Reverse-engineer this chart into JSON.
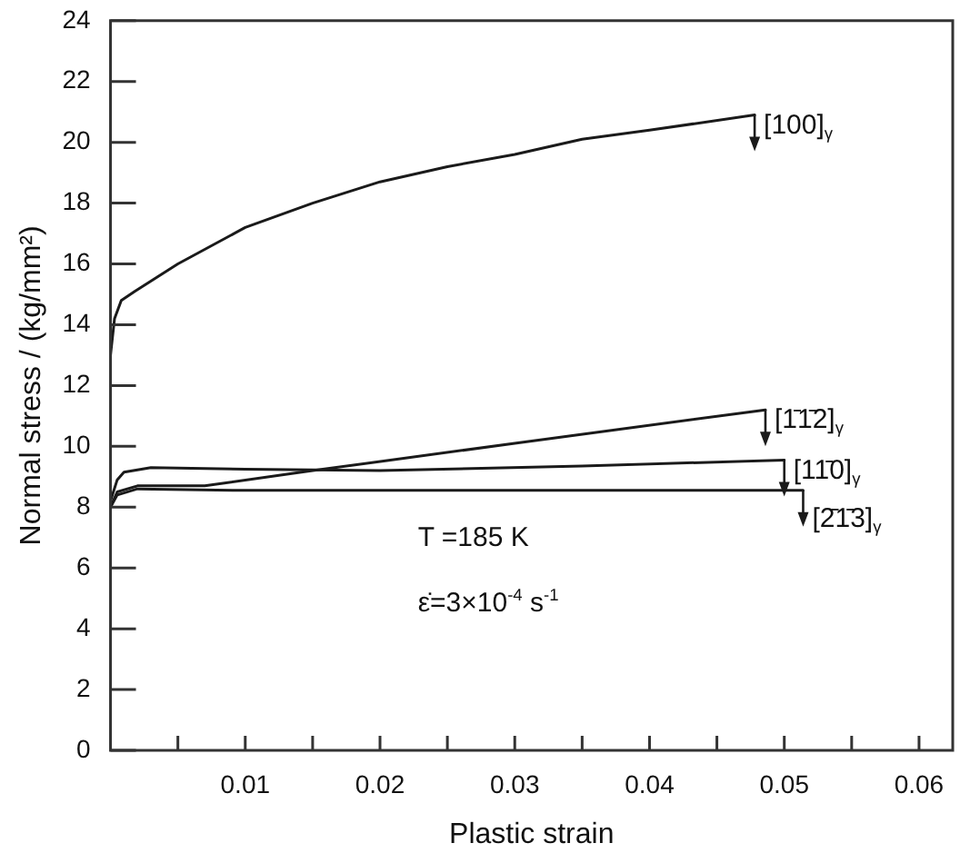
{
  "chart_data": {
    "type": "line",
    "xlabel": "Plastic strain",
    "ylabel": "Normal stress / (kg/mm²)",
    "xlim": [
      0,
      0.0625
    ],
    "xticks": [
      {
        "value": 0.005,
        "label": null
      },
      0.01,
      {
        "value": 0.015,
        "label": null
      },
      0.02,
      {
        "value": 0.025,
        "label": null
      },
      0.03,
      {
        "value": 0.035,
        "label": null
      },
      0.04,
      {
        "value": 0.045,
        "label": null
      },
      0.05,
      {
        "value": 0.055,
        "label": null
      },
      0.06
    ],
    "ylim": [
      0,
      24
    ],
    "yticks": [
      0,
      2,
      4,
      6,
      8,
      10,
      12,
      14,
      16,
      18,
      20,
      22,
      24
    ],
    "grid": false,
    "legend": "right",
    "marker": "none",
    "line_style": "solid",
    "series": [
      {
        "name": "[100]$_{γ}$",
        "color": "#1a1a1a",
        "x": [
          0,
          0.0003,
          0.0008,
          0.0018,
          0.005,
          0.01,
          0.015,
          0.02,
          0.025,
          0.03,
          0.035,
          0.04,
          0.0478
        ],
        "values": [
          13,
          14.2,
          14.8,
          15.1,
          16,
          17.2,
          18.0,
          18.7,
          19.2,
          19.6,
          20.1,
          20.4,
          20.9
        ]
      },
      {
        "name": "[1̄1̄2]$_{γ}$",
        "color": "#1a1a1a",
        "x": [
          0,
          0.0005,
          0.002,
          0.007,
          0.015,
          0.03,
          0.0486
        ],
        "values": [
          8,
          8.5,
          8.7,
          8.7,
          9.2,
          10.1,
          11.2
        ]
      },
      {
        "name": "[11̄0]$_{γ}$",
        "color": "#1a1a1a",
        "x": [
          0,
          0.0005,
          0.001,
          0.003,
          0.01,
          0.02,
          0.035,
          0.05
        ],
        "values": [
          8.2,
          8.9,
          9.15,
          9.3,
          9.25,
          9.2,
          9.35,
          9.55
        ]
      },
      {
        "name": "[2̄1̄3]$_{γ}$",
        "color": "#1a1a1a",
        "x": [
          0,
          0.0005,
          0.002,
          0.01,
          0.03,
          0.0514
        ],
        "values": [
          8,
          8.4,
          8.6,
          8.55,
          8.55,
          8.55
        ]
      }
    ],
    "annotations": [
      "T =185 K",
      "ε̇=3×10$^{-4}$ s$^{-1}$"
    ]
  }
}
